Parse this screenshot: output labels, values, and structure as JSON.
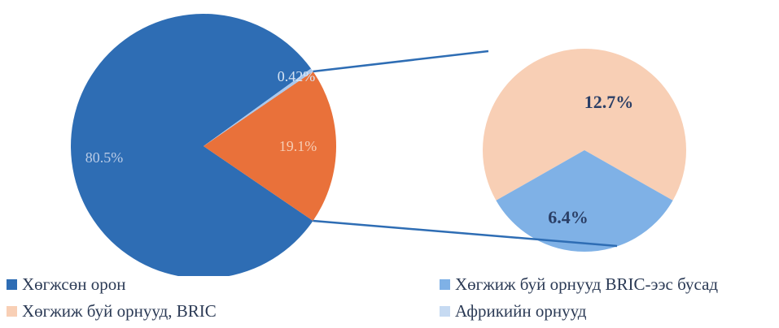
{
  "chart_data": {
    "type": "pie",
    "title": "",
    "main_pie": {
      "slices": [
        {
          "label": "Хөгжсөн орон",
          "value": 80.5,
          "display": "80.5%",
          "color": "#2e6db4",
          "label_color": "#b9cbe6"
        },
        {
          "label": "Хөгжиж буй орнууд",
          "value": 19.1,
          "display": "19.1%",
          "color": "#e9713a",
          "label_color": "#f6cdb4"
        },
        {
          "label": "Африкийн орнууд",
          "value": 0.42,
          "display": "0.42%",
          "color": "#a9c8ee",
          "label_color": "#d6e4f4"
        }
      ]
    },
    "breakdown_pie": {
      "of_slice": "Хөгжиж буй орнууд",
      "slices": [
        {
          "label": "Хөгжиж буй орнууд, BRIC",
          "value": 12.7,
          "display": "12.7%",
          "color": "#f8cfb5",
          "label_color": "#2b3f66"
        },
        {
          "label": "Хөгжиж буй орнууд BRIC-ээс бусад",
          "value": 6.4,
          "display": "6.4%",
          "color": "#7fb1e6",
          "label_color": "#2b3f66"
        }
      ]
    },
    "connector_color": "#2e6db4",
    "legend": [
      {
        "label": "Хөгжсөн орон",
        "color": "#2e6db4"
      },
      {
        "label": "Хөгжиж буй орнууд, BRIC",
        "color": "#f8cfb5"
      },
      {
        "label": "Хөгжиж буй орнууд BRIC-ээс бусад",
        "color": "#7fb1e6"
      },
      {
        "label": "Африкийн орнууд",
        "color": "#c6daf2"
      }
    ]
  }
}
